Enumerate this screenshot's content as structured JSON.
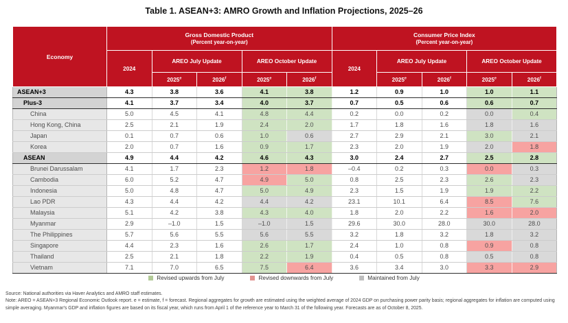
{
  "title": "Table 1. ASEAN+3: AMRO Growth and Inflation Projections, 2025–26",
  "table": {
    "economy_header": "Economy",
    "groups": [
      {
        "title": "Gross Domestic Product",
        "subtitle": "(Percent year-on-year)"
      },
      {
        "title": "Consumer Price Index",
        "subtitle": "(Percent year-on-year)"
      }
    ],
    "col_2024": "2024",
    "update_headers": [
      "AREO July Update",
      "AREO October Update"
    ],
    "year2025": {
      "text": "2025",
      "sup": "e"
    },
    "year2026": {
      "text": "2026",
      "sup": "f"
    },
    "rows": [
      {
        "label": "ASEAN+3",
        "level": 0,
        "bold": true,
        "gdp": [
          "4.3",
          "3.8",
          "3.6",
          "4.1",
          "3.8"
        ],
        "gdp_status": [
          "up",
          "up"
        ],
        "cpi": [
          "1.2",
          "0.9",
          "1.0",
          "1.0",
          "1.1"
        ],
        "cpi_status": [
          "up",
          "up"
        ]
      },
      {
        "label": "Plus-3",
        "level": 1,
        "bold": true,
        "gdp": [
          "4.1",
          "3.7",
          "3.4",
          "4.0",
          "3.7"
        ],
        "gdp_status": [
          "up",
          "up"
        ],
        "cpi": [
          "0.7",
          "0.5",
          "0.6",
          "0.6",
          "0.7"
        ],
        "cpi_status": [
          "up",
          "up"
        ]
      },
      {
        "label": "China",
        "level": 2,
        "bold": false,
        "gdp": [
          "5.0",
          "4.5",
          "4.1",
          "4.8",
          "4.4"
        ],
        "gdp_status": [
          "up",
          "up"
        ],
        "cpi": [
          "0.2",
          "0.0",
          "0.2",
          "0.0",
          "0.4"
        ],
        "cpi_status": [
          "same",
          "up"
        ]
      },
      {
        "label": "Hong Kong, China",
        "level": 2,
        "bold": false,
        "gdp": [
          "2.5",
          "2.1",
          "1.9",
          "2.4",
          "2.0"
        ],
        "gdp_status": [
          "up",
          "up"
        ],
        "cpi": [
          "1.7",
          "1.8",
          "1.6",
          "1.8",
          "1.6"
        ],
        "cpi_status": [
          "same",
          "same"
        ]
      },
      {
        "label": "Japan",
        "level": 2,
        "bold": false,
        "gdp": [
          "0.1",
          "0.7",
          "0.6",
          "1.0",
          "0.6"
        ],
        "gdp_status": [
          "up",
          "same"
        ],
        "cpi": [
          "2.7",
          "2.9",
          "2.1",
          "3.0",
          "2.1"
        ],
        "cpi_status": [
          "up",
          "same"
        ]
      },
      {
        "label": "Korea",
        "level": 2,
        "bold": false,
        "gdp": [
          "2.0",
          "0.7",
          "1.6",
          "0.9",
          "1.7"
        ],
        "gdp_status": [
          "up",
          "up"
        ],
        "cpi": [
          "2.3",
          "2.0",
          "1.9",
          "2.0",
          "1.8"
        ],
        "cpi_status": [
          "same",
          "down"
        ]
      },
      {
        "label": "ASEAN",
        "level": 1,
        "bold": true,
        "gdp": [
          "4.9",
          "4.4",
          "4.2",
          "4.6",
          "4.3"
        ],
        "gdp_status": [
          "up",
          "up"
        ],
        "cpi": [
          "3.0",
          "2.4",
          "2.7",
          "2.5",
          "2.8"
        ],
        "cpi_status": [
          "up",
          "up"
        ]
      },
      {
        "label": "Brunei Darussalam",
        "level": 2,
        "bold": false,
        "gdp": [
          "4.1",
          "1.7",
          "2.3",
          "1.2",
          "1.8"
        ],
        "gdp_status": [
          "down",
          "down"
        ],
        "cpi": [
          "–0.4",
          "0.2",
          "0.3",
          "0.0",
          "0.3"
        ],
        "cpi_status": [
          "down",
          "same"
        ]
      },
      {
        "label": "Cambodia",
        "level": 2,
        "bold": false,
        "gdp": [
          "6.0",
          "5.2",
          "4.7",
          "4.9",
          "5.0"
        ],
        "gdp_status": [
          "down",
          "up"
        ],
        "cpi": [
          "0.8",
          "2.5",
          "2.3",
          "2.6",
          "2.3"
        ],
        "cpi_status": [
          "up",
          "same"
        ]
      },
      {
        "label": "Indonesia",
        "level": 2,
        "bold": false,
        "gdp": [
          "5.0",
          "4.8",
          "4.7",
          "5.0",
          "4.9"
        ],
        "gdp_status": [
          "up",
          "up"
        ],
        "cpi": [
          "2.3",
          "1.5",
          "1.9",
          "1.9",
          "2.2"
        ],
        "cpi_status": [
          "up",
          "up"
        ]
      },
      {
        "label": "Lao PDR",
        "level": 2,
        "bold": false,
        "gdp": [
          "4.3",
          "4.4",
          "4.2",
          "4.4",
          "4.2"
        ],
        "gdp_status": [
          "same",
          "same"
        ],
        "cpi": [
          "23.1",
          "10.1",
          "6.4",
          "8.5",
          "7.6"
        ],
        "cpi_status": [
          "down",
          "up"
        ]
      },
      {
        "label": "Malaysia",
        "level": 2,
        "bold": false,
        "gdp": [
          "5.1",
          "4.2",
          "3.8",
          "4.3",
          "4.0"
        ],
        "gdp_status": [
          "up",
          "up"
        ],
        "cpi": [
          "1.8",
          "2.0",
          "2.2",
          "1.6",
          "2.0"
        ],
        "cpi_status": [
          "down",
          "down"
        ]
      },
      {
        "label": "Myanmar",
        "level": 2,
        "bold": false,
        "gdp": [
          "2.9",
          "–1.0",
          "1.5",
          "–1.0",
          "1.5"
        ],
        "gdp_status": [
          "same",
          "same"
        ],
        "cpi": [
          "29.6",
          "30.0",
          "28.0",
          "30.0",
          "28.0"
        ],
        "cpi_status": [
          "same",
          "same"
        ]
      },
      {
        "label": "The Philippines",
        "level": 2,
        "bold": false,
        "gdp": [
          "5.7",
          "5.6",
          "5.5",
          "5.6",
          "5.5"
        ],
        "gdp_status": [
          "same",
          "same"
        ],
        "cpi": [
          "3.2",
          "1.8",
          "3.2",
          "1.8",
          "3.2"
        ],
        "cpi_status": [
          "same",
          "same"
        ]
      },
      {
        "label": "Singapore",
        "level": 2,
        "bold": false,
        "gdp": [
          "4.4",
          "2.3",
          "1.6",
          "2.6",
          "1.7"
        ],
        "gdp_status": [
          "up",
          "up"
        ],
        "cpi": [
          "2.4",
          "1.0",
          "0.8",
          "0.9",
          "0.8"
        ],
        "cpi_status": [
          "down",
          "same"
        ]
      },
      {
        "label": "Thailand",
        "level": 2,
        "bold": false,
        "gdp": [
          "2.5",
          "2.1",
          "1.8",
          "2.2",
          "1.9"
        ],
        "gdp_status": [
          "up",
          "up"
        ],
        "cpi": [
          "0.4",
          "0.5",
          "0.8",
          "0.5",
          "0.8"
        ],
        "cpi_status": [
          "same",
          "same"
        ]
      },
      {
        "label": "Vietnam",
        "level": 2,
        "bold": false,
        "gdp": [
          "7.1",
          "7.0",
          "6.5",
          "7.5",
          "6.4"
        ],
        "gdp_status": [
          "up",
          "down"
        ],
        "cpi": [
          "3.6",
          "3.4",
          "3.0",
          "3.3",
          "2.9"
        ],
        "cpi_status": [
          "down",
          "down"
        ]
      }
    ]
  },
  "legend": [
    {
      "label": "Revised upwards from July",
      "color": "#b2ca97"
    },
    {
      "label": "Revised downwards from July",
      "color": "#e29490"
    },
    {
      "label": "Maintained from July",
      "color": "#bdbdbd"
    }
  ],
  "footer": {
    "source": "Source: National authorities via Haver Analytics and AMRO staff estimates.",
    "note": "Note: AREO = ASEAN+3 Regional Economic Outlook report. e = estimate, f = forecast. Regional aggregates for growth are estimated using the weighted average of 2024 GDP on purchasing power parity basis; regional aggregates for inflation are computed using simple averaging. Myanmar's GDP and inflation figures are based on its fiscal year, which runs from April 1 of the reference year to March 31 of the following year. Forecasts are as of October 8, 2025."
  },
  "colors": {
    "header_red": "#bf1321",
    "revised_up_cell": "#cfe3c2",
    "revised_down_cell": "#f7a3a1",
    "maintained_cell": "#d9d9d9",
    "aggregate_label_bg": "#d3d3d3",
    "member_label_bg": "#e7e7e7"
  }
}
